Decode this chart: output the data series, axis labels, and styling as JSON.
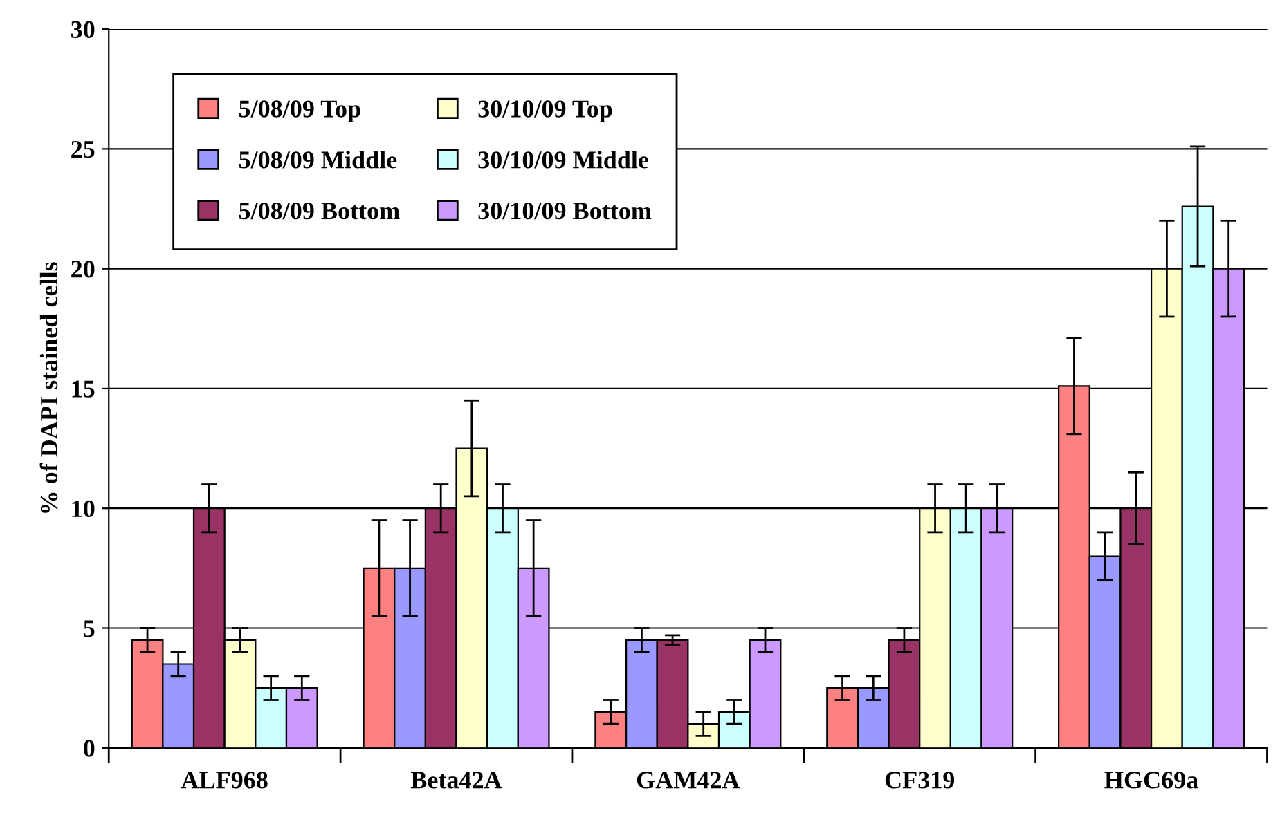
{
  "chart_data": {
    "type": "bar",
    "ylabel": "% of DAPI stained cells",
    "categories": [
      "ALF968",
      "Beta42A",
      "GAM42A",
      "CF319",
      "HGC69a"
    ],
    "series": [
      {
        "name": "5/08/09 Top",
        "color": "#ff8080",
        "values": [
          4.5,
          7.5,
          1.5,
          2.5,
          15.1
        ],
        "errors": [
          0.5,
          2,
          0.5,
          0.5,
          2
        ]
      },
      {
        "name": "5/08/09 Middle",
        "color": "#9999ff",
        "values": [
          3.5,
          7.5,
          4.5,
          2.5,
          8
        ],
        "errors": [
          0.5,
          2,
          0.5,
          0.5,
          1
        ]
      },
      {
        "name": "5/08/09 Bottom",
        "color": "#993366",
        "values": [
          10,
          10,
          4.5,
          4.5,
          10
        ],
        "errors": [
          1,
          1,
          0.2,
          0.5,
          1.5
        ]
      },
      {
        "name": "30/10/09 Top",
        "color": "#ffffcc",
        "values": [
          4.5,
          12.5,
          1,
          10,
          20
        ],
        "errors": [
          0.5,
          2,
          0.5,
          1,
          2
        ]
      },
      {
        "name": "30/10/09 Middle",
        "color": "#ccffff",
        "values": [
          2.5,
          10,
          1.5,
          10,
          22.6
        ],
        "errors": [
          0.5,
          1,
          0.5,
          1,
          2.5
        ]
      },
      {
        "name": "30/10/09 Bottom",
        "color": "#cc99ff",
        "values": [
          2.5,
          7.5,
          4.5,
          10,
          20
        ],
        "errors": [
          0.5,
          2,
          0.5,
          1,
          2
        ]
      }
    ],
    "ylim": [
      0,
      30
    ],
    "yticks": [
      0,
      5,
      10,
      15,
      20,
      25,
      30
    ],
    "grid": "y",
    "legend": "top left"
  }
}
